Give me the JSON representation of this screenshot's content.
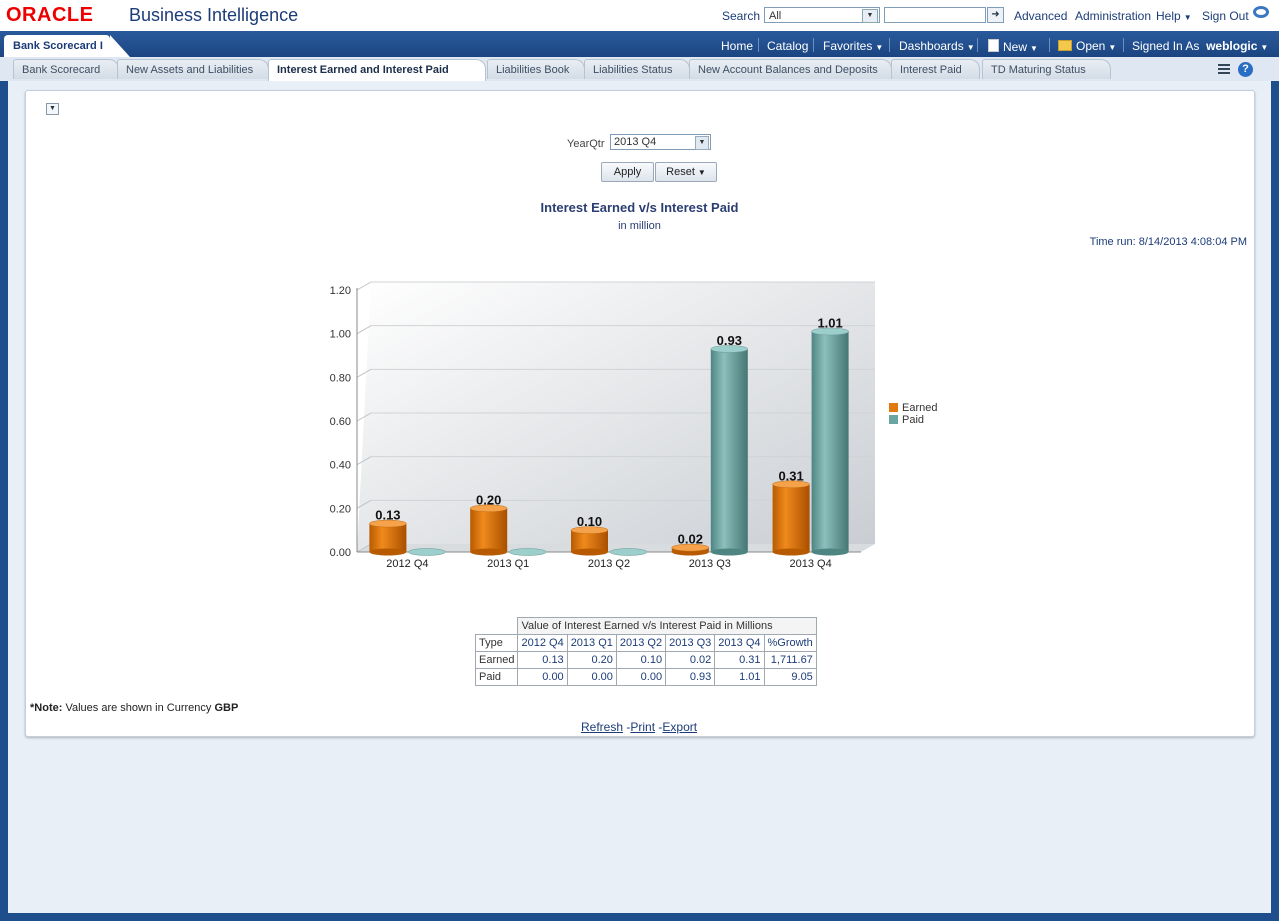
{
  "header": {
    "logo": "ORACLE",
    "app_title": "Business Intelligence",
    "search_label": "Search",
    "search_scope": "All",
    "links": [
      "Advanced",
      "Administration",
      "Help",
      "Sign Out"
    ]
  },
  "navbar": {
    "dashboard_tab": "Bank Scorecard I",
    "items": [
      "Home",
      "Catalog",
      "Favorites",
      "Dashboards",
      "New",
      "Open",
      "Signed In As"
    ],
    "user": "weblogic"
  },
  "page_tabs": [
    "Bank Scorecard",
    "New Assets and Liabilities",
    "Interest Earned and Interest Paid",
    "Liabilities Book",
    "Liabilities Status",
    "New Account Balances and Deposits",
    "Interest Paid",
    "TD Maturing Status"
  ],
  "prompt": {
    "label": "YearQtr",
    "value": "2013 Q4",
    "apply": "Apply",
    "reset": "Reset"
  },
  "report": {
    "title": "Interest Earned v/s Interest Paid",
    "subtitle": "in million",
    "time_run": "Time run: 8/14/2013 4:08:04 PM"
  },
  "chart_data": {
    "type": "bar",
    "categories": [
      "2012 Q4",
      "2013 Q1",
      "2013 Q2",
      "2013 Q3",
      "2013 Q4"
    ],
    "series": [
      {
        "name": "Earned",
        "values": [
          0.13,
          0.2,
          0.1,
          0.02,
          0.31
        ],
        "color": "#e07a10",
        "labels": [
          "0.13",
          "0.20",
          "0.10",
          "0.02",
          "0.31"
        ]
      },
      {
        "name": "Paid",
        "values": [
          0.0,
          0.0,
          0.0,
          0.93,
          1.01
        ],
        "color": "#6aa5a2",
        "labels": [
          "",
          "",
          "",
          "0.93",
          "1.01"
        ]
      }
    ],
    "ylim": [
      0,
      1.2
    ],
    "yticks": [
      "0.00",
      "0.20",
      "0.40",
      "0.60",
      "0.80",
      "1.00",
      "1.20"
    ],
    "grid": true,
    "legend": "right"
  },
  "table": {
    "caption": "Value of Interest Earned v/s Interest Paid in Millions",
    "header": [
      "Type",
      "2012 Q4",
      "2013 Q1",
      "2013 Q2",
      "2013 Q3",
      "2013 Q4",
      "%Growth"
    ],
    "rows": [
      [
        "Earned",
        "0.13",
        "0.20",
        "0.10",
        "0.02",
        "0.31",
        "1,711.67"
      ],
      [
        "Paid",
        "0.00",
        "0.00",
        "0.00",
        "0.93",
        "1.01",
        "9.05"
      ]
    ]
  },
  "note": {
    "prefix": "*Note:",
    "text": "Values are shown in Currency",
    "currency": "GBP"
  },
  "footer_links": [
    "Refresh",
    "Print",
    "Export"
  ]
}
